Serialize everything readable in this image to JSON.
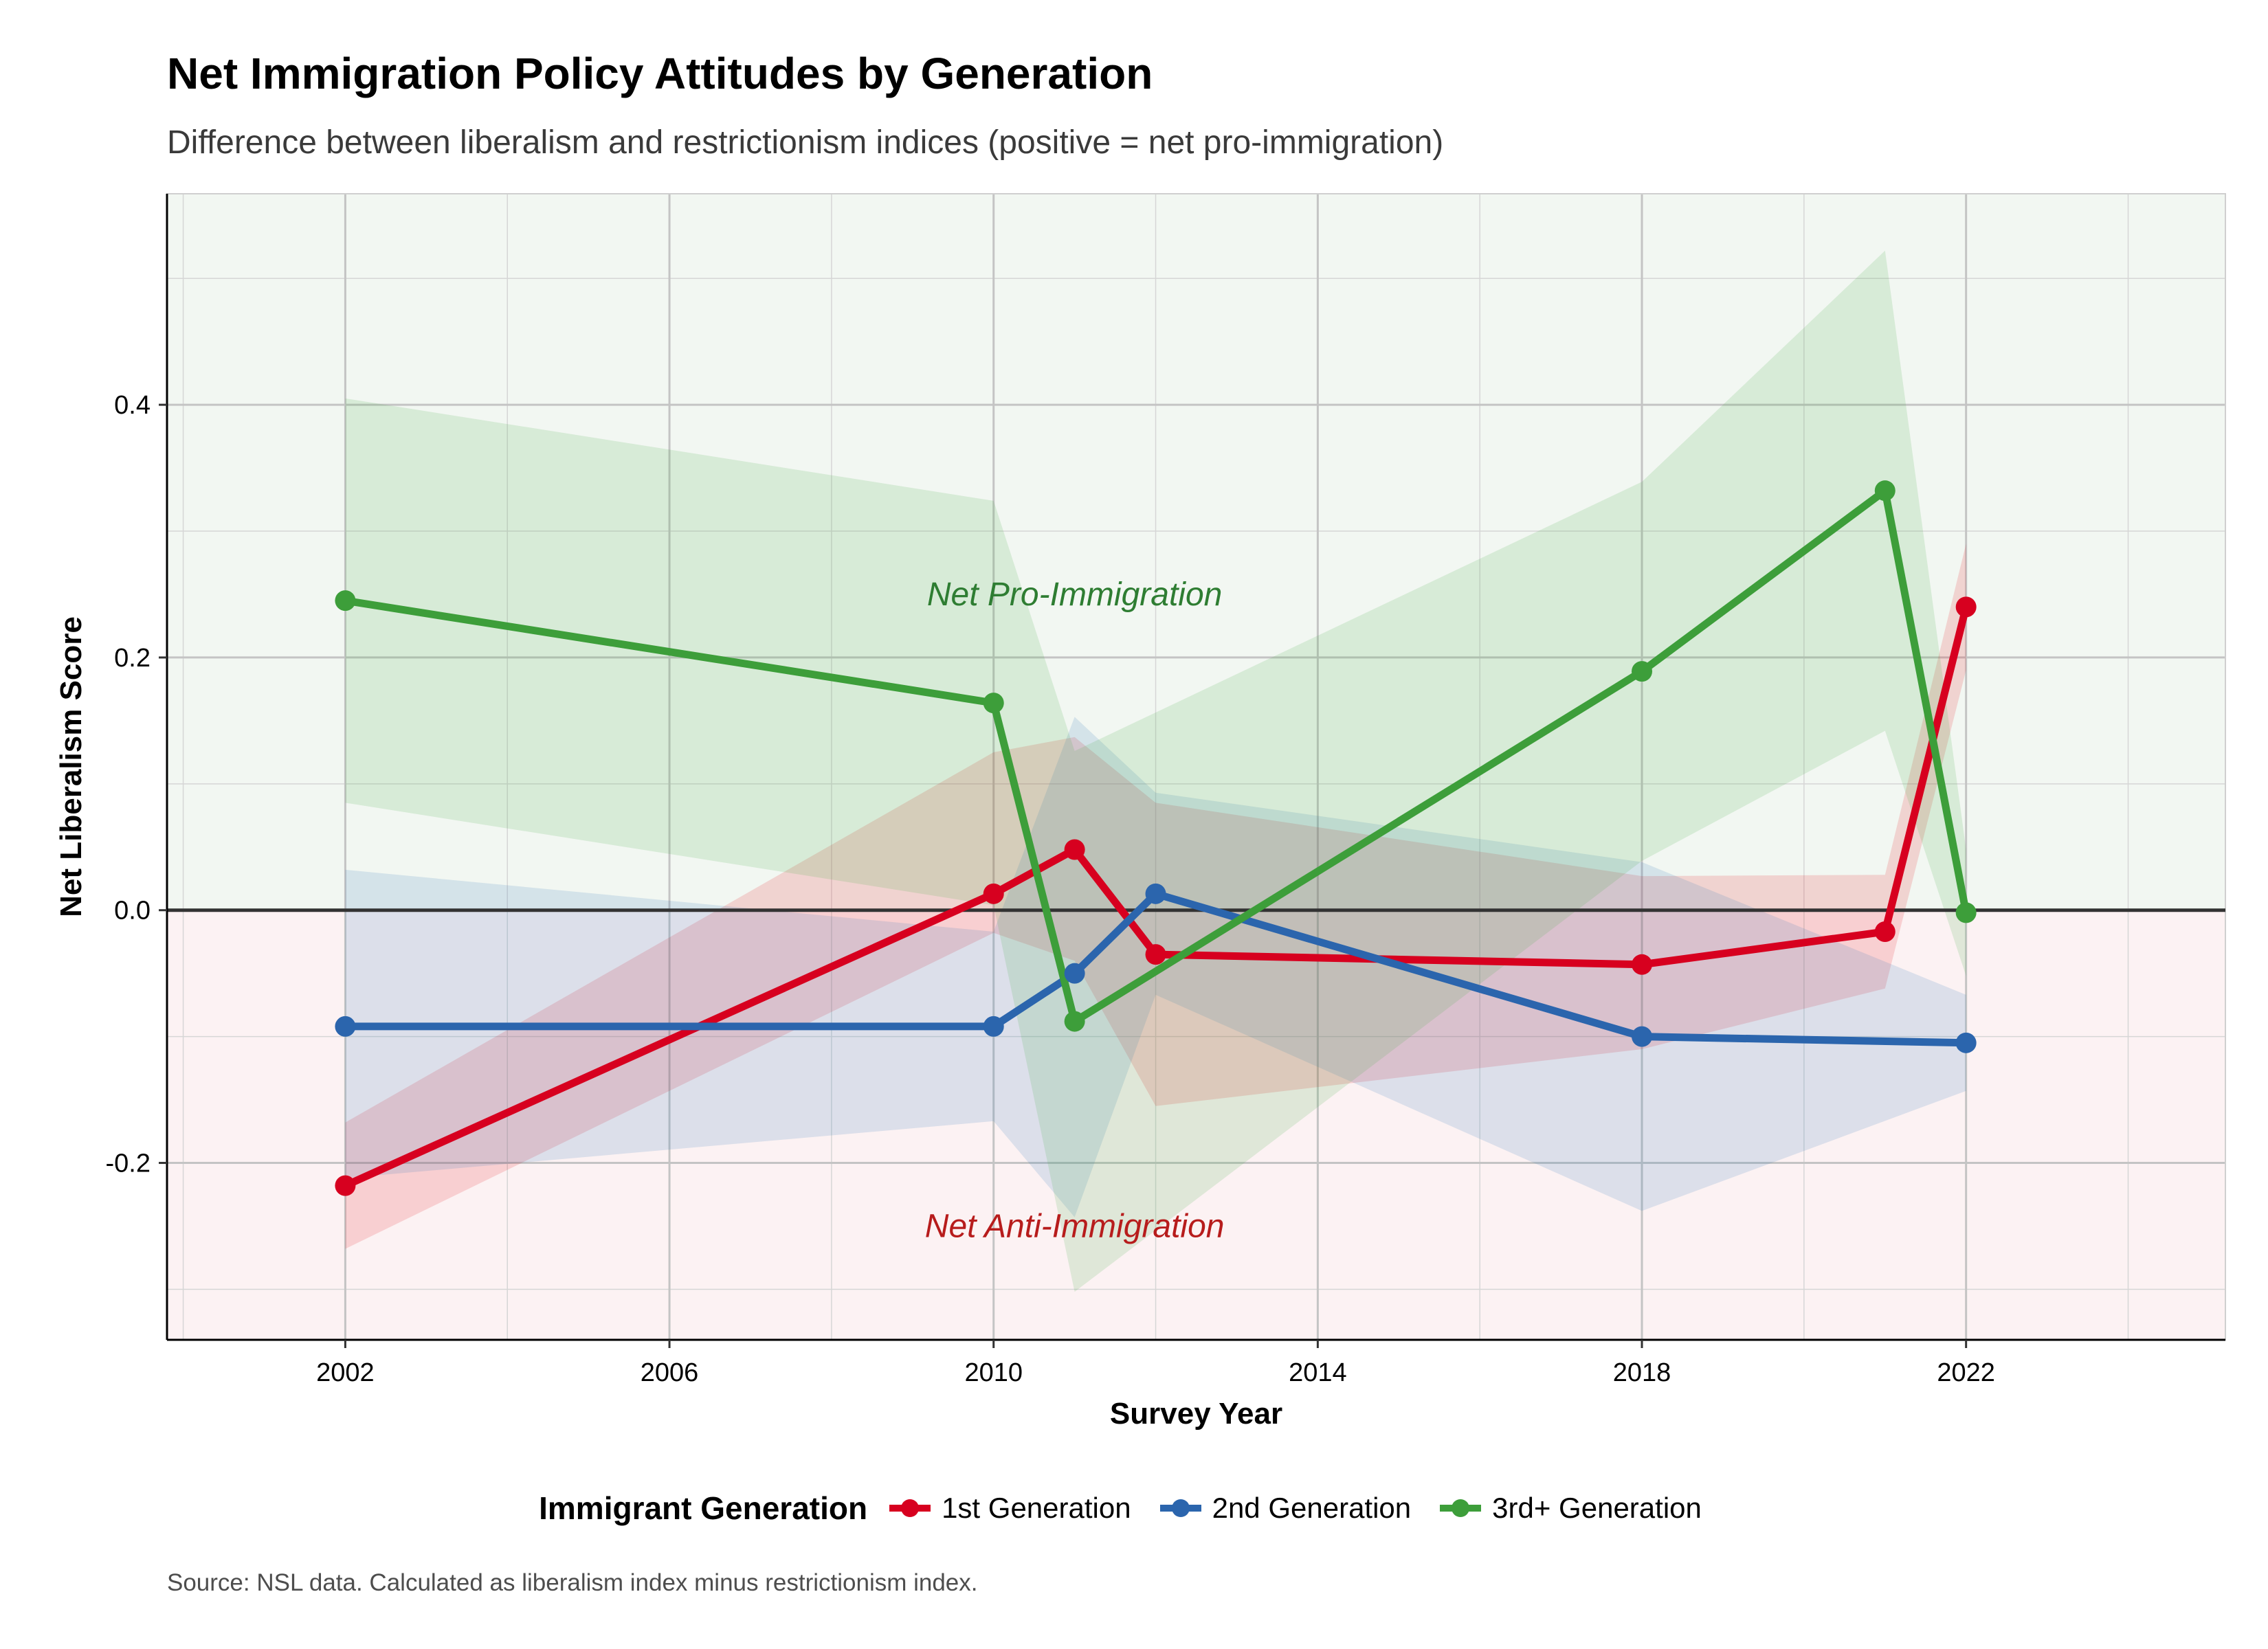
{
  "chart_data": {
    "type": "line",
    "title": "Net Immigration Policy Attitudes by Generation",
    "subtitle": "Difference between liberalism and restrictionism indices (positive = net pro-immigration)",
    "xlabel": "Survey Year",
    "ylabel": "Net Liberalism Score",
    "xlim": [
      1999.8,
      2025.2
    ],
    "ylim": [
      -0.34,
      0.567
    ],
    "x_ticks": [
      2002,
      2006,
      2010,
      2014,
      2018,
      2022
    ],
    "y_ticks": [
      -0.2,
      0.0,
      0.2,
      0.4
    ],
    "x_tick_labels": [
      "2002",
      "2006",
      "2010",
      "2014",
      "2018",
      "2022"
    ],
    "y_tick_labels": [
      "-0.2",
      "0.0",
      "0.2",
      "0.4"
    ],
    "grid": true,
    "zero_line": 0,
    "regions": [
      {
        "label": "Net Pro-Immigration",
        "from": 0,
        "to": "top",
        "color": "#2e7d32",
        "fill": "#f2f7f2",
        "label_x": 2011,
        "label_y": 0.25
      },
      {
        "label": "Net Anti-Immigration",
        "from": "bottom",
        "to": 0,
        "color": "#b71c1c",
        "fill": "#fcf2f3",
        "label_x": 2011,
        "label_y": -0.25
      }
    ],
    "series": [
      {
        "name": "1st Generation",
        "color": "#d7001f",
        "band_fill": "#e41a1c",
        "x": [
          2002,
          2010,
          2011,
          2012,
          2018,
          2021,
          2022
        ],
        "y": [
          -0.218,
          0.013,
          0.048,
          -0.035,
          -0.043,
          -0.017,
          0.24
        ],
        "lower": [
          -0.268,
          -0.018,
          -0.04,
          -0.155,
          -0.11,
          -0.062,
          0.19
        ],
        "upper": [
          -0.168,
          0.125,
          0.137,
          0.085,
          0.027,
          0.028,
          0.29
        ]
      },
      {
        "name": "2nd Generation",
        "color": "#2b65ad",
        "band_fill": "#377eb8",
        "x": [
          2002,
          2010,
          2011,
          2012,
          2018,
          2022
        ],
        "y": [
          -0.092,
          -0.092,
          -0.05,
          0.013,
          -0.1,
          -0.105
        ],
        "lower": [
          -0.212,
          -0.167,
          -0.243,
          -0.067,
          -0.238,
          -0.143
        ],
        "upper": [
          0.032,
          -0.017,
          0.153,
          0.093,
          0.038,
          -0.067
        ]
      },
      {
        "name": "3rd+ Generation",
        "color": "#3d9e3a",
        "band_fill": "#4daf4a",
        "x": [
          2002,
          2010,
          2011,
          2018,
          2021,
          2022
        ],
        "y": [
          0.245,
          0.164,
          -0.088,
          0.189,
          0.332,
          -0.002
        ],
        "lower": [
          0.085,
          0.004,
          -0.302,
          0.039,
          0.142,
          -0.052
        ],
        "upper": [
          0.405,
          0.324,
          0.126,
          0.339,
          0.522,
          0.048
        ]
      }
    ],
    "legend": {
      "title": "Immigrant Generation",
      "position": "bottom",
      "entries": [
        "1st Generation",
        "2nd Generation",
        "3rd+ Generation"
      ]
    },
    "caption": "Source: NSL data. Calculated as liberalism index minus restrictionism index."
  }
}
